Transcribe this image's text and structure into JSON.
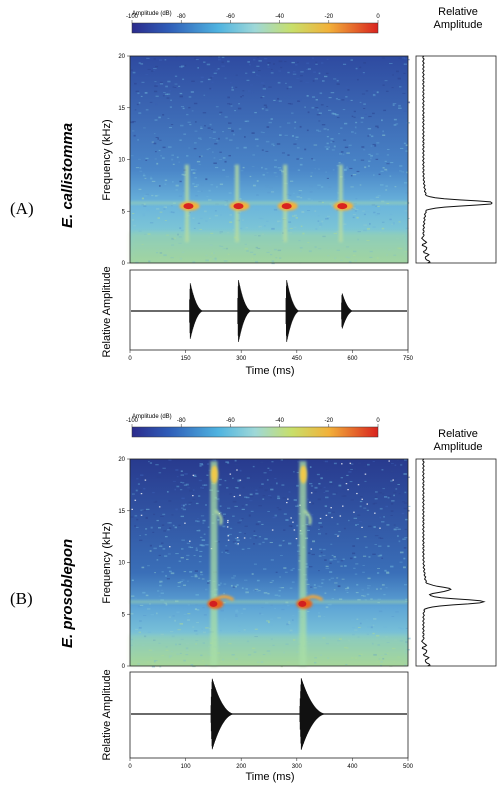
{
  "figure": {
    "panels": [
      {
        "id": "A",
        "letter": "(A)",
        "species": "E. callistomma",
        "colorbar": {
          "title": "Amplitude (dB)",
          "ticks": [
            "-100",
            "-80",
            "-60",
            "-40",
            "-20",
            "0"
          ]
        },
        "relative_amplitude_title": [
          "Relative",
          "Amplitude"
        ],
        "spectrogram": {
          "ylabel": "Frequency (kHz)",
          "yticks": [
            "0",
            "5",
            "10",
            "15",
            "20"
          ]
        },
        "oscillogram": {
          "ylabel": "Relative Amplitude",
          "xlabel": "Time (ms)",
          "xticks": [
            "0",
            "150",
            "300",
            "450",
            "600",
            "750"
          ]
        }
      },
      {
        "id": "B",
        "letter": "(B)",
        "species": "E. prosoblepon",
        "colorbar": {
          "title": "Amplitude (dB)",
          "ticks": [
            "-100",
            "-80",
            "-60",
            "-40",
            "-20",
            "0"
          ]
        },
        "relative_amplitude_title": [
          "Relative",
          "Amplitude"
        ],
        "spectrogram": {
          "ylabel": "Frequency (kHz)",
          "yticks": [
            "0",
            "5",
            "10",
            "15",
            "20"
          ]
        },
        "oscillogram": {
          "ylabel": "Relative Amplitude",
          "xlabel": "Time (ms)",
          "xticks": [
            "0",
            "100",
            "200",
            "300",
            "400",
            "500"
          ]
        }
      }
    ]
  },
  "chart_data": [
    {
      "type": "heatmap",
      "panel": "A",
      "title": "",
      "xlabel": "Time (ms)",
      "ylabel": "Frequency (kHz)",
      "xlim": [
        0,
        750
      ],
      "ylim": [
        0,
        20
      ],
      "colorbar_range_db": [
        -100,
        0
      ],
      "pulses": [
        {
          "t": 155,
          "f": 5.5
        },
        {
          "t": 290,
          "f": 5.5
        },
        {
          "t": 420,
          "f": 5.5
        },
        {
          "t": 570,
          "f": 5.5
        }
      ],
      "dominant_frequency_khz": 5.8
    },
    {
      "type": "line",
      "panel": "A",
      "title": "",
      "ylabel": "Relative Amplitude",
      "xlabel": "Time (ms)",
      "xlim": [
        0,
        750
      ],
      "bursts": [
        {
          "t": 160,
          "dur": 40,
          "amp": 0.85
        },
        {
          "t": 290,
          "dur": 40,
          "amp": 0.95
        },
        {
          "t": 420,
          "dur": 40,
          "amp": 0.95
        },
        {
          "t": 570,
          "dur": 35,
          "amp": 0.55
        }
      ]
    },
    {
      "type": "line",
      "panel": "A",
      "title": "",
      "ylabel": "Frequency (kHz)",
      "xlabel": "Relative Amplitude",
      "ylim": [
        0,
        20
      ],
      "peaks": [
        {
          "f": 5.8,
          "amp": 1.0
        }
      ]
    },
    {
      "type": "heatmap",
      "panel": "B",
      "title": "",
      "xlabel": "Time (ms)",
      "ylabel": "Frequency (kHz)",
      "xlim": [
        0,
        500
      ],
      "ylim": [
        0,
        20
      ],
      "colorbar_range_db": [
        -100,
        0
      ],
      "pulses": [
        {
          "t": 150,
          "f": 6.0,
          "harmonic_f": 7.5,
          "upper_f": 18.5
        },
        {
          "t": 310,
          "f": 6.0,
          "harmonic_f": 7.5,
          "upper_f": 18.5
        }
      ],
      "dominant_frequency_khz": 6.2
    },
    {
      "type": "line",
      "panel": "B",
      "title": "",
      "ylabel": "Relative Amplitude",
      "xlabel": "Time (ms)",
      "xlim": [
        0,
        500
      ],
      "bursts": [
        {
          "t": 145,
          "dur": 45,
          "amp": 1.0
        },
        {
          "t": 305,
          "dur": 50,
          "amp": 1.0
        }
      ]
    },
    {
      "type": "line",
      "panel": "B",
      "title": "",
      "ylabel": "Frequency (kHz)",
      "xlabel": "Relative Amplitude",
      "ylim": [
        0,
        20
      ],
      "peaks": [
        {
          "f": 7.4,
          "amp": 0.35
        },
        {
          "f": 6.2,
          "amp": 0.85
        }
      ]
    }
  ]
}
